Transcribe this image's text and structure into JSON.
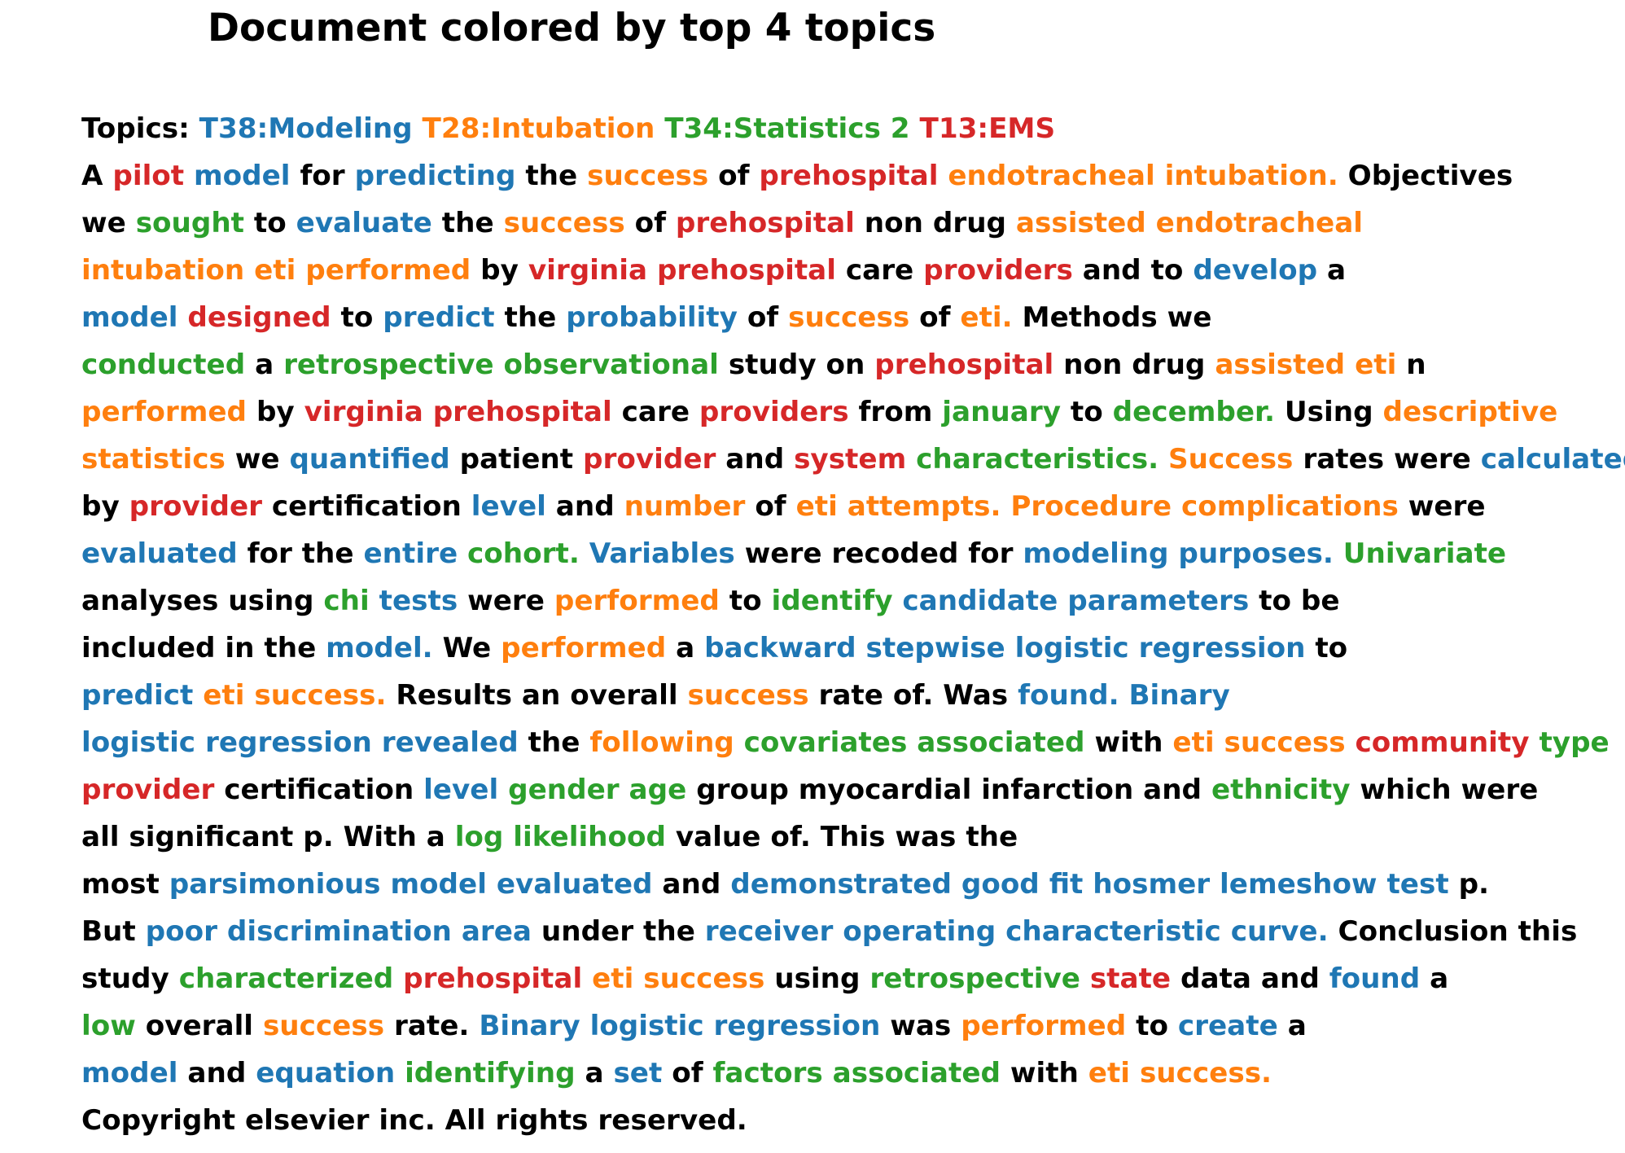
{
  "title": "Document colored by top 4 topics",
  "colors": {
    "T38": "#1f77b4",
    "T28": "#ff7f0e",
    "T34": "#2ca02c",
    "T13": "#d62728",
    "none": "#000000"
  },
  "topics_label": "Topics:",
  "topics": [
    {
      "key": "T38",
      "label": "T38:Modeling"
    },
    {
      "key": "T28",
      "label": "T28:Intubation"
    },
    {
      "key": "T34",
      "label": "T34:Statistics 2"
    },
    {
      "key": "T13",
      "label": "T13:EMS"
    }
  ],
  "lines": [
    [
      [
        "A",
        ""
      ],
      [
        "pilot",
        "T13"
      ],
      [
        "model",
        "T38"
      ],
      [
        "for",
        ""
      ],
      [
        "predicting",
        "T38"
      ],
      [
        "the",
        ""
      ],
      [
        "success",
        "T28"
      ],
      [
        "of",
        ""
      ],
      [
        "prehospital",
        "T13"
      ],
      [
        "endotracheal",
        "T28"
      ],
      [
        "intubation.",
        "T28"
      ],
      [
        "Objectives",
        ""
      ]
    ],
    [
      [
        "we",
        ""
      ],
      [
        "sought",
        "T34"
      ],
      [
        "to",
        ""
      ],
      [
        "evaluate",
        "T38"
      ],
      [
        "the",
        ""
      ],
      [
        "success",
        "T28"
      ],
      [
        "of",
        ""
      ],
      [
        "prehospital",
        "T13"
      ],
      [
        "non",
        ""
      ],
      [
        "drug",
        ""
      ],
      [
        "assisted",
        "T28"
      ],
      [
        "endotracheal",
        "T28"
      ]
    ],
    [
      [
        "intubation",
        "T28"
      ],
      [
        "eti",
        "T28"
      ],
      [
        "performed",
        "T28"
      ],
      [
        "by",
        ""
      ],
      [
        "virginia",
        "T13"
      ],
      [
        "prehospital",
        "T13"
      ],
      [
        "care",
        ""
      ],
      [
        "providers",
        "T13"
      ],
      [
        "and",
        ""
      ],
      [
        "to",
        ""
      ],
      [
        "develop",
        "T38"
      ],
      [
        "a",
        ""
      ]
    ],
    [
      [
        "model",
        "T38"
      ],
      [
        "designed",
        "T13"
      ],
      [
        "to",
        ""
      ],
      [
        "predict",
        "T38"
      ],
      [
        "the",
        ""
      ],
      [
        "probability",
        "T38"
      ],
      [
        "of",
        ""
      ],
      [
        "success",
        "T28"
      ],
      [
        "of",
        ""
      ],
      [
        "eti.",
        "T28"
      ],
      [
        "Methods",
        ""
      ],
      [
        "we",
        ""
      ]
    ],
    [
      [
        "conducted",
        "T34"
      ],
      [
        "a",
        ""
      ],
      [
        "retrospective",
        "T34"
      ],
      [
        "observational",
        "T34"
      ],
      [
        "study",
        ""
      ],
      [
        "on",
        ""
      ],
      [
        "prehospital",
        "T13"
      ],
      [
        "non",
        ""
      ],
      [
        "drug",
        ""
      ],
      [
        "assisted",
        "T28"
      ],
      [
        "eti",
        "T28"
      ],
      [
        "n",
        ""
      ]
    ],
    [
      [
        "performed",
        "T28"
      ],
      [
        "by",
        ""
      ],
      [
        "virginia",
        "T13"
      ],
      [
        "prehospital",
        "T13"
      ],
      [
        "care",
        ""
      ],
      [
        "providers",
        "T13"
      ],
      [
        "from",
        ""
      ],
      [
        "january",
        "T34"
      ],
      [
        "to",
        ""
      ],
      [
        "december.",
        "T34"
      ],
      [
        "Using",
        ""
      ],
      [
        "descriptive",
        "T28"
      ]
    ],
    [
      [
        "statistics",
        "T28"
      ],
      [
        "we",
        ""
      ],
      [
        "quantified",
        "T38"
      ],
      [
        "patient",
        ""
      ],
      [
        "provider",
        "T13"
      ],
      [
        "and",
        ""
      ],
      [
        "system",
        "T13"
      ],
      [
        "characteristics.",
        "T34"
      ],
      [
        "Success",
        "T28"
      ],
      [
        "rates",
        ""
      ],
      [
        "were",
        ""
      ],
      [
        "calculated",
        "T38"
      ]
    ],
    [
      [
        "by",
        ""
      ],
      [
        "provider",
        "T13"
      ],
      [
        "certification",
        ""
      ],
      [
        "level",
        "T38"
      ],
      [
        "and",
        ""
      ],
      [
        "number",
        "T28"
      ],
      [
        "of",
        ""
      ],
      [
        "eti",
        "T28"
      ],
      [
        "attempts.",
        "T28"
      ],
      [
        "Procedure",
        "T28"
      ],
      [
        "complications",
        "T28"
      ],
      [
        "were",
        ""
      ]
    ],
    [
      [
        "evaluated",
        "T38"
      ],
      [
        "for",
        ""
      ],
      [
        "the",
        ""
      ],
      [
        "entire",
        "T38"
      ],
      [
        "cohort.",
        "T34"
      ],
      [
        "Variables",
        "T38"
      ],
      [
        "were",
        ""
      ],
      [
        "recoded",
        ""
      ],
      [
        "for",
        ""
      ],
      [
        "modeling",
        "T38"
      ],
      [
        "purposes.",
        "T38"
      ],
      [
        "Univariate",
        "T34"
      ]
    ],
    [
      [
        "analyses",
        ""
      ],
      [
        "using",
        ""
      ],
      [
        "chi",
        "T34"
      ],
      [
        "tests",
        "T38"
      ],
      [
        "were",
        ""
      ],
      [
        "performed",
        "T28"
      ],
      [
        "to",
        ""
      ],
      [
        "identify",
        "T34"
      ],
      [
        "candidate",
        "T38"
      ],
      [
        "parameters",
        "T38"
      ],
      [
        "to",
        ""
      ],
      [
        "be",
        ""
      ]
    ],
    [
      [
        "included",
        ""
      ],
      [
        "in",
        ""
      ],
      [
        "the",
        ""
      ],
      [
        "model.",
        "T38"
      ],
      [
        "We",
        ""
      ],
      [
        "performed",
        "T28"
      ],
      [
        "a",
        ""
      ],
      [
        "backward",
        "T38"
      ],
      [
        "stepwise",
        "T38"
      ],
      [
        "logistic",
        "T38"
      ],
      [
        "regression",
        "T38"
      ],
      [
        "to",
        ""
      ]
    ],
    [
      [
        "predict",
        "T38"
      ],
      [
        "eti",
        "T28"
      ],
      [
        "success.",
        "T28"
      ],
      [
        "Results",
        ""
      ],
      [
        "an",
        ""
      ],
      [
        "overall",
        ""
      ],
      [
        "success",
        "T28"
      ],
      [
        "rate",
        ""
      ],
      [
        "of.",
        ""
      ],
      [
        "Was",
        ""
      ],
      [
        "found.",
        "T38"
      ],
      [
        "Binary",
        "T38"
      ]
    ],
    [
      [
        "logistic",
        "T38"
      ],
      [
        "regression",
        "T38"
      ],
      [
        "revealed",
        "T38"
      ],
      [
        "the",
        ""
      ],
      [
        "following",
        "T28"
      ],
      [
        "covariates",
        "T34"
      ],
      [
        "associated",
        "T34"
      ],
      [
        "with",
        ""
      ],
      [
        "eti",
        "T28"
      ],
      [
        "success",
        "T28"
      ],
      [
        "community",
        "T13"
      ],
      [
        "type",
        "T34"
      ]
    ],
    [
      [
        "provider",
        "T13"
      ],
      [
        "certification",
        ""
      ],
      [
        "level",
        "T38"
      ],
      [
        "gender",
        "T34"
      ],
      [
        "age",
        "T34"
      ],
      [
        "group",
        ""
      ],
      [
        "myocardial",
        ""
      ],
      [
        "infarction",
        ""
      ],
      [
        "and",
        ""
      ],
      [
        "ethnicity",
        "T34"
      ],
      [
        "which",
        ""
      ],
      [
        "were",
        ""
      ]
    ],
    [
      [
        "all",
        ""
      ],
      [
        "significant",
        ""
      ],
      [
        "p.",
        ""
      ],
      [
        "With",
        ""
      ],
      [
        "a",
        ""
      ],
      [
        "log",
        "T34"
      ],
      [
        "likelihood",
        "T34"
      ],
      [
        "value",
        ""
      ],
      [
        "of.",
        ""
      ],
      [
        "This",
        ""
      ],
      [
        "was",
        ""
      ],
      [
        "the",
        ""
      ]
    ],
    [
      [
        "most",
        ""
      ],
      [
        "parsimonious",
        "T38"
      ],
      [
        "model",
        "T38"
      ],
      [
        "evaluated",
        "T38"
      ],
      [
        "and",
        ""
      ],
      [
        "demonstrated",
        "T38"
      ],
      [
        "good",
        "T38"
      ],
      [
        "fit",
        "T38"
      ],
      [
        "hosmer",
        "T38"
      ],
      [
        "lemeshow",
        "T38"
      ],
      [
        "test",
        "T38"
      ],
      [
        "p.",
        ""
      ]
    ],
    [
      [
        "But",
        ""
      ],
      [
        "poor",
        "T38"
      ],
      [
        "discrimination",
        "T38"
      ],
      [
        "area",
        "T38"
      ],
      [
        "under",
        ""
      ],
      [
        "the",
        ""
      ],
      [
        "receiver",
        "T38"
      ],
      [
        "operating",
        "T38"
      ],
      [
        "characteristic",
        "T38"
      ],
      [
        "curve.",
        "T38"
      ],
      [
        "Conclusion",
        ""
      ],
      [
        "this",
        ""
      ]
    ],
    [
      [
        "study",
        ""
      ],
      [
        "characterized",
        "T34"
      ],
      [
        "prehospital",
        "T13"
      ],
      [
        "eti",
        "T28"
      ],
      [
        "success",
        "T28"
      ],
      [
        "using",
        ""
      ],
      [
        "retrospective",
        "T34"
      ],
      [
        "state",
        "T13"
      ],
      [
        "data",
        ""
      ],
      [
        "and",
        ""
      ],
      [
        "found",
        "T38"
      ],
      [
        "a",
        ""
      ]
    ],
    [
      [
        "low",
        "T34"
      ],
      [
        "overall",
        ""
      ],
      [
        "success",
        "T28"
      ],
      [
        "rate.",
        ""
      ],
      [
        "Binary",
        "T38"
      ],
      [
        "logistic",
        "T38"
      ],
      [
        "regression",
        "T38"
      ],
      [
        "was",
        ""
      ],
      [
        "performed",
        "T28"
      ],
      [
        "to",
        ""
      ],
      [
        "create",
        "T38"
      ],
      [
        "a",
        ""
      ]
    ],
    [
      [
        "model",
        "T38"
      ],
      [
        "and",
        ""
      ],
      [
        "equation",
        "T38"
      ],
      [
        "identifying",
        "T34"
      ],
      [
        "a",
        ""
      ],
      [
        "set",
        "T38"
      ],
      [
        "of",
        ""
      ],
      [
        "factors",
        "T34"
      ],
      [
        "associated",
        "T34"
      ],
      [
        "with",
        ""
      ],
      [
        "eti",
        "T28"
      ],
      [
        "success.",
        "T28"
      ]
    ],
    [
      [
        "Copyright",
        ""
      ],
      [
        "elsevier",
        ""
      ],
      [
        "inc.",
        ""
      ],
      [
        "All",
        ""
      ],
      [
        "rights",
        ""
      ],
      [
        "reserved.",
        ""
      ]
    ]
  ]
}
